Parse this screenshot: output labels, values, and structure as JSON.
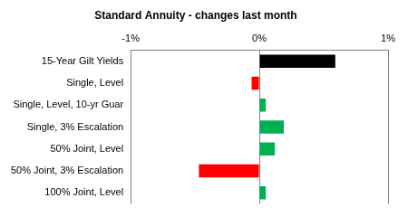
{
  "chart_data": {
    "type": "bar",
    "title": "Standard Annuity - changes last month",
    "orientation": "horizontal",
    "categories": [
      "15-Year Gilt Yields",
      "Single, Level",
      "Single, Level, 10-yr Guar",
      "Single, 3% Escalation",
      "50% Joint, Level",
      "50% Joint, 3% Escalation",
      "100% Joint, Level"
    ],
    "values": [
      0.59,
      -0.06,
      0.05,
      0.19,
      0.12,
      -0.47,
      0.05
    ],
    "colors": [
      "#000000",
      "#ff0000",
      "#00b050",
      "#00b050",
      "#00b050",
      "#ff0000",
      "#00b050"
    ],
    "xlim": [
      -1,
      1
    ],
    "xticks": [
      {
        "value": -1,
        "label": "-1%"
      },
      {
        "value": 0,
        "label": "0%"
      },
      {
        "value": 1,
        "label": "1%"
      }
    ],
    "grid": true
  }
}
